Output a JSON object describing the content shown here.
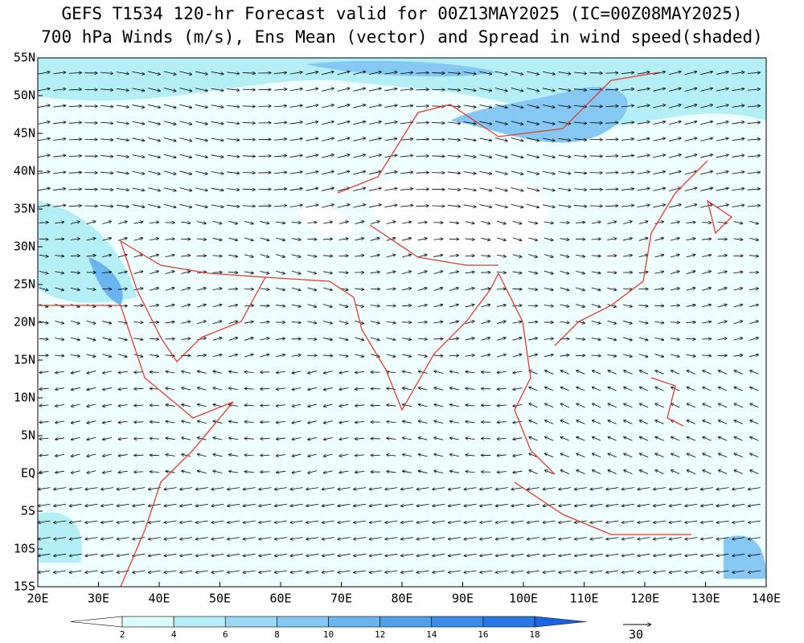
{
  "title": [
    "GEFS T1534 120-hr Forecast valid for 00Z13MAY2025 (IC=00Z08MAY2025)",
    "700 hPa Winds (m/s), Ens Mean (vector) and Spread in wind speed(shaded)"
  ],
  "map": {
    "lonlim": [
      20,
      140
    ],
    "latlim": [
      -15,
      55
    ],
    "lat_ticks": [
      {
        "value": 55,
        "label": "55N"
      },
      {
        "value": 50,
        "label": "50N"
      },
      {
        "value": 45,
        "label": "45N"
      },
      {
        "value": 40,
        "label": "40N"
      },
      {
        "value": 35,
        "label": "35N"
      },
      {
        "value": 30,
        "label": "30N"
      },
      {
        "value": 25,
        "label": "25N"
      },
      {
        "value": 20,
        "label": "20N"
      },
      {
        "value": 15,
        "label": "15N"
      },
      {
        "value": 10,
        "label": "10N"
      },
      {
        "value": 5,
        "label": "5N"
      },
      {
        "value": 0,
        "label": "EQ"
      },
      {
        "value": -5,
        "label": "5S"
      },
      {
        "value": -10,
        "label": "10S"
      },
      {
        "value": -15,
        "label": "15S"
      }
    ],
    "lon_ticks": [
      {
        "value": 20,
        "label": "20E"
      },
      {
        "value": 30,
        "label": "30E"
      },
      {
        "value": 40,
        "label": "40E"
      },
      {
        "value": 50,
        "label": "50E"
      },
      {
        "value": 60,
        "label": "60E"
      },
      {
        "value": 70,
        "label": "70E"
      },
      {
        "value": 80,
        "label": "80E"
      },
      {
        "value": 90,
        "label": "90E"
      },
      {
        "value": 100,
        "label": "100E"
      },
      {
        "value": 110,
        "label": "110E"
      },
      {
        "value": 120,
        "label": "120E"
      },
      {
        "value": 130,
        "label": "130E"
      },
      {
        "value": 140,
        "label": "140E"
      }
    ]
  },
  "colorbar": {
    "levels": [
      2,
      4,
      6,
      8,
      10,
      12,
      14,
      16,
      18
    ],
    "colors": [
      "#ffffff",
      "#dcfcfc",
      "#b4eef6",
      "#9cd8f4",
      "#86c8f4",
      "#6ab4f0",
      "#50a0ee",
      "#3a8ce8",
      "#2878e4",
      "#1a64e0"
    ]
  },
  "reference_vector": 30
}
